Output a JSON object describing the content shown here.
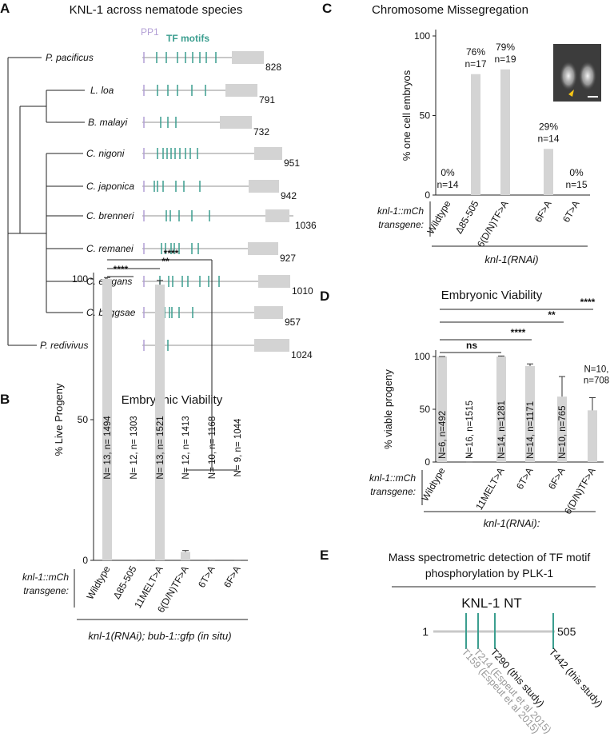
{
  "panel_a": {
    "letter": "A",
    "title": "KNL-1 across nematode species",
    "pp1_label": "PP1",
    "tf_label": "TF motifs",
    "species": [
      {
        "name": "P. pacificus",
        "length": 828
      },
      {
        "name": "L. loa",
        "length": 791
      },
      {
        "name": "B. malayi",
        "length": 732
      },
      {
        "name": "C. nigoni",
        "length": 951
      },
      {
        "name": "C. japonica",
        "length": 942
      },
      {
        "name": "C. brenneri",
        "length": 1036
      },
      {
        "name": "C. remanei",
        "length": 927
      },
      {
        "name": "C. elegans",
        "length": 1010
      },
      {
        "name": "C. briggsae",
        "length": 957
      },
      {
        "name": "P. redivivus",
        "length": 1024
      }
    ]
  },
  "chart_data": [
    {
      "type": "bar",
      "panel_label": "B",
      "title": "Embryonic Viability",
      "y_label": "% Live Progeny",
      "categories": [
        "Wildtype",
        "Δ85-505",
        "11MELT>A",
        "6(D/N)TF>A",
        "6T>A",
        "6F>A"
      ],
      "values": [
        100,
        0,
        98,
        3,
        0,
        0
      ],
      "errors": [
        0.5,
        0,
        1.5,
        0.5,
        0,
        0
      ],
      "bar_labels": [
        [
          "N= 13, n= 1494"
        ],
        [
          "N= 12, n= 1303"
        ],
        [
          "N= 13, n= 1521"
        ],
        [
          "N= 12, n= 1413"
        ],
        [
          "N= 10, n= 1168"
        ],
        [
          "N= 9, n= 1044"
        ]
      ],
      "significance": [
        "****",
        "**",
        "****"
      ],
      "row_label": [
        "knl-1::mCh",
        "transgene:"
      ],
      "group_label": "knl-1(RNAi); bub-1::gfp (in situ)",
      "color": "#d4d4d4",
      "ylim": [
        0,
        100
      ],
      "yticks": [
        0,
        50,
        100
      ]
    },
    {
      "type": "bar",
      "panel_label": "C",
      "title": "Chromosome Missegregation",
      "y_label": "% one cell embryos",
      "categories": [
        "Wildtype",
        "Δ85-505",
        "6(D/N)TF>A",
        "6F>A",
        "6T>A"
      ],
      "values": [
        0,
        76,
        79,
        29,
        0
      ],
      "value_labels": [
        "0%",
        "76%",
        "79%",
        "29%",
        "0%"
      ],
      "n_labels": [
        "n=14",
        "n=17",
        "n=19",
        "n=14",
        "n=15"
      ],
      "row_label": [
        "knl-1::mCh",
        "transgene:"
      ],
      "group_label": "knl-1(RNAi)",
      "color": "#d4d4d4",
      "ylim": [
        0,
        100
      ],
      "yticks": [
        0,
        50,
        100
      ]
    },
    {
      "type": "bar",
      "panel_label": "D",
      "title": "Embryonic Viability",
      "y_label": "% viable progeny",
      "categories": [
        "Wildtype",
        "-",
        "11MELT>A",
        "6T>A",
        "6F>A",
        "6(D/N)TF>A"
      ],
      "values": [
        100,
        0,
        100,
        91,
        62,
        49
      ],
      "errors": [
        0,
        0,
        0.5,
        2,
        19,
        12
      ],
      "bar_labels": [
        [
          "N=6, n=492"
        ],
        [
          "N=16, n=1515"
        ],
        [
          "N=14, n=1281"
        ],
        [
          "N=14, n=1171"
        ],
        [
          "N=10, n=765"
        ],
        [
          "N=10,",
          "n=708"
        ]
      ],
      "significance": [
        "ns",
        "****",
        "**",
        "****"
      ],
      "row_label": [
        "knl-1::mCh",
        "transgene:"
      ],
      "group_label": "knl-1(RNAi):",
      "color": "#d4d4d4",
      "ylim": [
        0,
        100
      ],
      "yticks": [
        0,
        50,
        100
      ]
    }
  ],
  "panel_e": {
    "letter": "E",
    "title": [
      "Mass spectrometric detection of TF motif",
      "phosphorylation by PLK-1"
    ],
    "protein": "KNL-1 NT",
    "start": 1,
    "end": 505,
    "sites": [
      "T159 (Espeut et al 2015)",
      "T214 (Espeut et al 2015)",
      "T290 (this study)",
      "T442 (this study)"
    ]
  }
}
